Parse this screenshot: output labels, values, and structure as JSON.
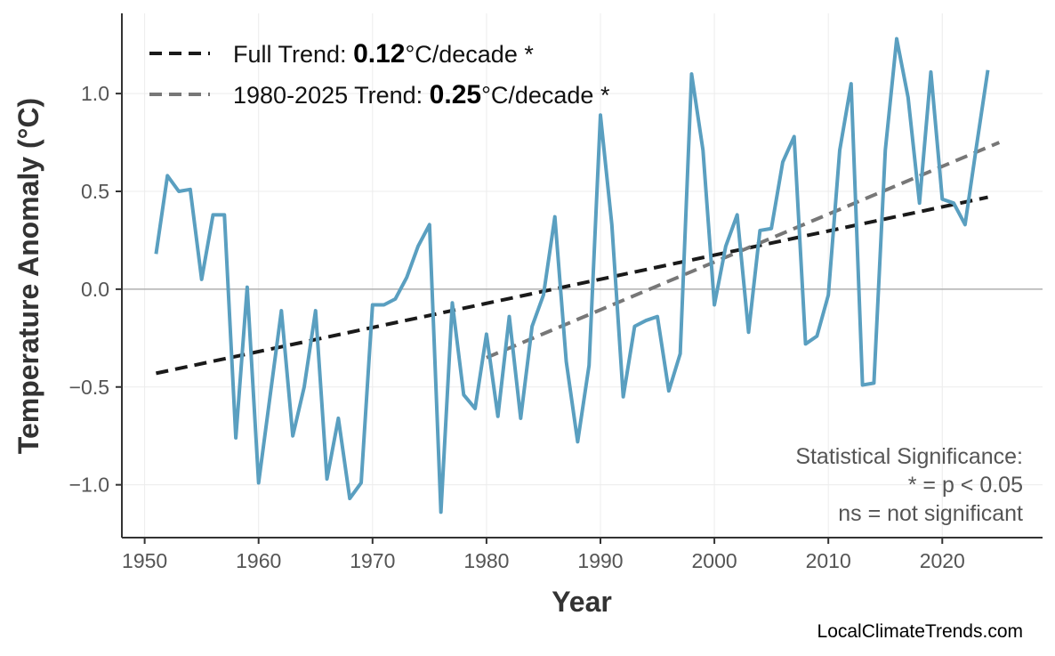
{
  "chart_data": {
    "type": "line",
    "title": "",
    "xlabel": "Year",
    "ylabel": "Temperature Anomaly (°C)",
    "xlim": [
      1948,
      2028.8
    ],
    "ylim": [
      -1.27,
      1.41
    ],
    "xticks": [
      1950,
      1960,
      1970,
      1980,
      1990,
      2000,
      2010,
      2020
    ],
    "yticks": [
      -1.0,
      -0.5,
      0.0,
      0.5,
      1.0
    ],
    "ytick_labels": [
      "−1.0",
      "−0.5",
      "0.0",
      "0.5",
      "1.0"
    ],
    "grid": true,
    "colors": {
      "series": "#5a9fc0",
      "full_trend": "#1a1a1a",
      "recent_trend": "#777777",
      "zero_line": "#b0b0b0"
    },
    "x": [
      1951,
      1952,
      1953,
      1954,
      1955,
      1956,
      1957,
      1958,
      1959,
      1960,
      1961,
      1962,
      1963,
      1964,
      1965,
      1966,
      1967,
      1968,
      1969,
      1970,
      1971,
      1972,
      1973,
      1974,
      1975,
      1976,
      1977,
      1978,
      1979,
      1980,
      1981,
      1982,
      1983,
      1984,
      1985,
      1986,
      1987,
      1988,
      1989,
      1990,
      1991,
      1992,
      1993,
      1994,
      1995,
      1996,
      1997,
      1998,
      1999,
      2000,
      2001,
      2002,
      2003,
      2004,
      2005,
      2006,
      2007,
      2008,
      2009,
      2010,
      2011,
      2012,
      2013,
      2014,
      2015,
      2016,
      2017,
      2018,
      2019,
      2020,
      2021,
      2022,
      2023,
      2024
    ],
    "series": [
      {
        "values": [
          0.18,
          0.58,
          0.5,
          0.51,
          0.05,
          0.38,
          0.38,
          -0.76,
          0.01,
          -0.99,
          -0.55,
          -0.11,
          -0.75,
          -0.5,
          -0.11,
          -0.97,
          -0.66,
          -1.07,
          -0.99,
          -0.08,
          -0.08,
          -0.05,
          0.06,
          0.22,
          0.33,
          -1.14,
          -0.07,
          -0.54,
          -0.61,
          -0.23,
          -0.65,
          -0.14,
          -0.66,
          -0.19,
          -0.03,
          0.37,
          -0.37,
          -0.78,
          -0.39,
          0.89,
          0.33,
          -0.55,
          -0.19,
          -0.16,
          -0.14,
          -0.52,
          -0.33,
          1.1,
          0.71,
          -0.08,
          0.22,
          0.38,
          -0.22,
          0.3,
          0.31,
          0.65,
          0.78,
          -0.28,
          -0.24,
          -0.03,
          0.71,
          1.05,
          -0.49,
          -0.48,
          0.71,
          1.28,
          0.98,
          0.44,
          1.11,
          0.46,
          0.44,
          0.33,
          0.73,
          1.12
        ]
      }
    ],
    "trends": [
      {
        "x": [
          1951,
          2024
        ],
        "y": [
          -0.43,
          0.47
        ]
      },
      {
        "x": [
          1980,
          2025
        ],
        "y": [
          -0.35,
          0.75
        ]
      }
    ],
    "legend": {
      "placement": "top-left",
      "entries": [
        {
          "prefix": "Full Trend: ",
          "value": "0.12",
          "suffix": "°C/decade *"
        },
        {
          "prefix": "1980-2025 Trend: ",
          "value": "0.25",
          "suffix": "°C/decade *"
        }
      ]
    },
    "annotation": [
      "Statistical Significance:",
      "* = p < 0.05",
      "ns = not significant"
    ],
    "credit": "LocalClimateTrends.com"
  }
}
